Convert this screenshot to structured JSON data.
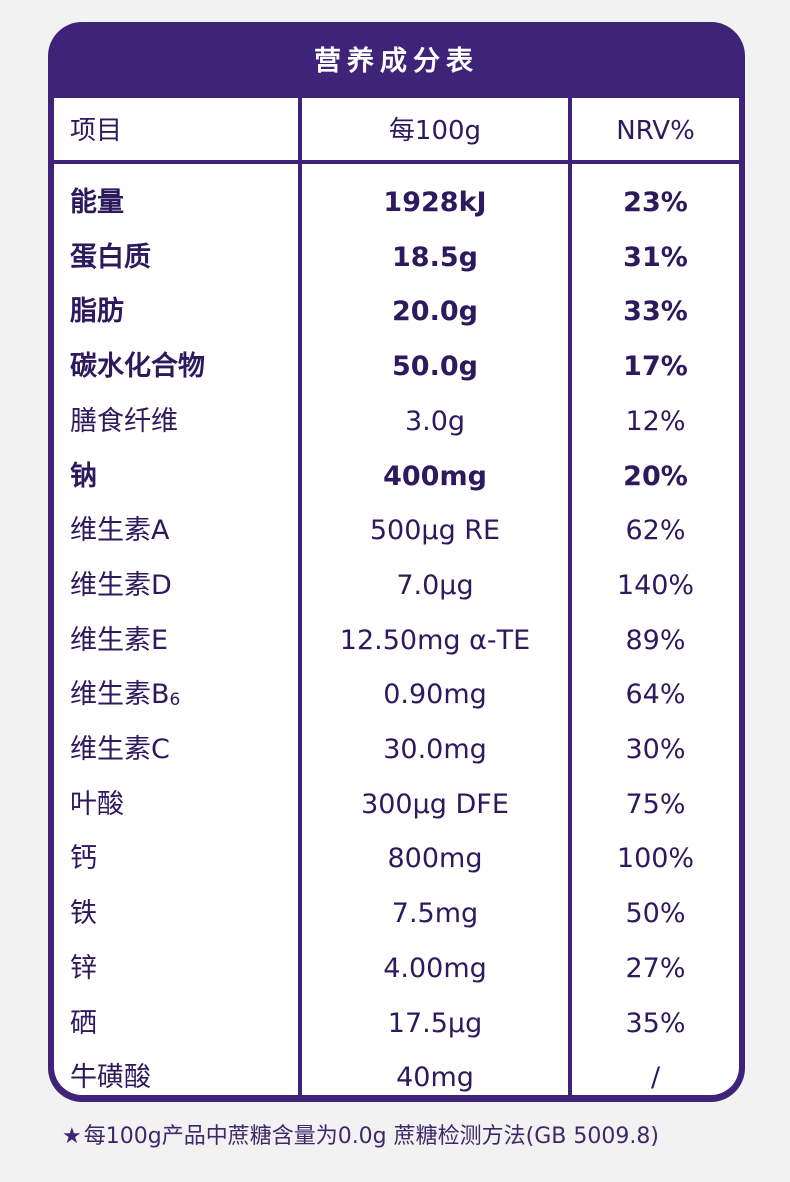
{
  "title": "营养成分表",
  "headers": {
    "item": "项目",
    "per100g": "每100g",
    "nrv": "NRV%"
  },
  "rows": [
    {
      "name": "能量",
      "value": "1928kJ",
      "nrv": "23%",
      "bold": true
    },
    {
      "name": "蛋白质",
      "value": "18.5g",
      "nrv": "31%",
      "bold": true
    },
    {
      "name": "脂肪",
      "value": "20.0g",
      "nrv": "33%",
      "bold": true
    },
    {
      "name": "碳水化合物",
      "value": "50.0g",
      "nrv": "17%",
      "bold": true
    },
    {
      "name": "膳食纤维",
      "value": "3.0g",
      "nrv": "12%",
      "bold": false
    },
    {
      "name": "钠",
      "value": "400mg",
      "nrv": "20%",
      "bold": true
    },
    {
      "name": "维生素A",
      "value": "500μg RE",
      "nrv": "62%",
      "bold": false
    },
    {
      "name": "维生素D",
      "value": "7.0μg",
      "nrv": "140%",
      "bold": false
    },
    {
      "name": "维生素E",
      "value": "12.50mg α-TE",
      "nrv": "89%",
      "bold": false
    },
    {
      "name": "维生素B",
      "name_sub": "6",
      "value": "0.90mg",
      "nrv": "64%",
      "bold": false
    },
    {
      "name": "维生素C",
      "value": "30.0mg",
      "nrv": "30%",
      "bold": false
    },
    {
      "name": "叶酸",
      "value": "300μg DFE",
      "nrv": "75%",
      "bold": false
    },
    {
      "name": "钙",
      "value": "800mg",
      "nrv": "100%",
      "bold": false
    },
    {
      "name": "铁",
      "value": "7.5mg",
      "nrv": "50%",
      "bold": false
    },
    {
      "name": "锌",
      "value": "4.00mg",
      "nrv": "27%",
      "bold": false
    },
    {
      "name": "硒",
      "value": "17.5μg",
      "nrv": "35%",
      "bold": false
    },
    {
      "name": "牛磺酸",
      "value": "40mg",
      "nrv": "/",
      "bold": false
    }
  ],
  "footnote": {
    "star_icon": "star-icon",
    "text": "每100g产品中蔗糖含量为0.0g  蔗糖检测方法(GB 5009.8)"
  },
  "colors": {
    "accent": "#3e2379",
    "text": "#2d1a5e",
    "background": "#f3f2f2"
  }
}
